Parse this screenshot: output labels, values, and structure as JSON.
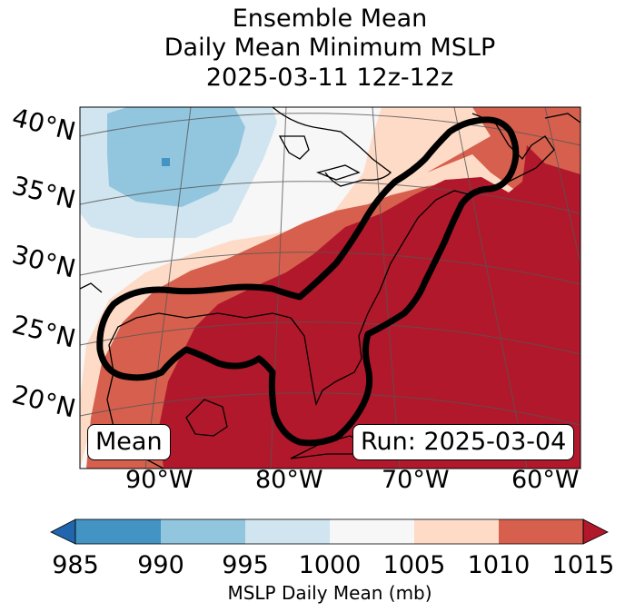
{
  "title": {
    "line1": "Ensemble Mean",
    "line2": "Daily Mean Minimum MSLP",
    "line3": "2025-03-11 12z-12z"
  },
  "map": {
    "lat_labels": [
      "40°N",
      "35°N",
      "30°N",
      "25°N",
      "20°N"
    ],
    "lon_labels": [
      "90°W",
      "80°W",
      "70°W",
      "60°W"
    ],
    "mean_label": "Mean",
    "run_label": "Run: 2025-03-04",
    "field_colors": {
      "lt995": "#92c5de",
      "995_1000": "#d1e5f0",
      "1000_1005": "#f7f7f7",
      "1005_1010": "#fddbc7",
      "1010_1015": "#d6604d",
      "gt1015": "#b2182b"
    }
  },
  "colorbar": {
    "ticks": [
      "985",
      "990",
      "995",
      "1000",
      "1005",
      "1010",
      "1015"
    ],
    "label": "MSLP Daily Mean (mb)",
    "colors": [
      "#2166ac",
      "#4393c3",
      "#92c5de",
      "#d1e5f0",
      "#f7f7f7",
      "#fddbc7",
      "#d6604d",
      "#b2182b"
    ]
  }
}
